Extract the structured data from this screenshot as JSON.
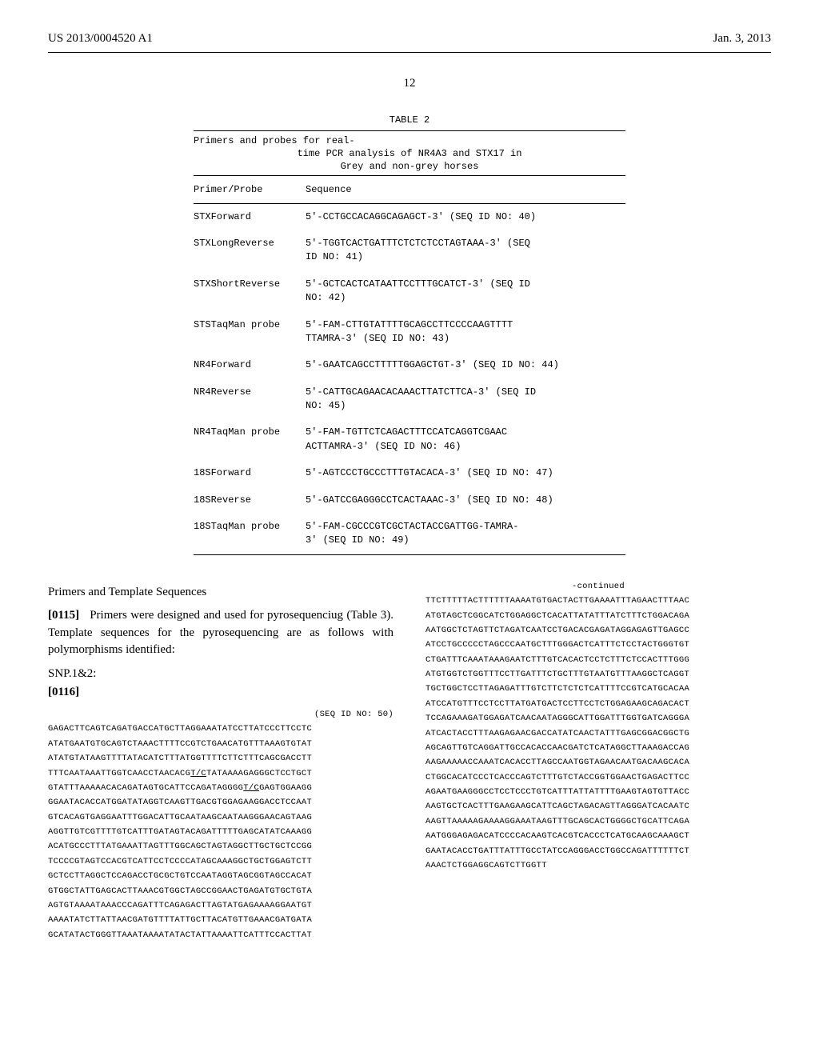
{
  "header": {
    "pubnum": "US 2013/0004520 A1",
    "pubdate": "Jan. 3, 2013"
  },
  "pagenum": "12",
  "table": {
    "number": "TABLE 2",
    "caption_line1": "Primers and probes for real-",
    "caption_line2": "time PCR analysis of NR4A3 and STX17 in",
    "caption_line3": "Grey and non-grey horses",
    "col1": "Primer/Probe",
    "col2": "Sequence",
    "rows": [
      {
        "c1": "STXForward",
        "c2": "5'-CCTGCCACAGGCAGAGCT-3' (SEQ ID NO: 40)"
      },
      {
        "c1": "STXLongReverse",
        "c2": "5'-TGGTCACTGATTTCTCTCTCCTAGTAAA-3' (SEQ\nID NO: 41)"
      },
      {
        "c1": "STXShortReverse",
        "c2": "5'-GCTCACTCATAATTCCTTTGCATCT-3' (SEQ ID\nNO: 42)"
      },
      {
        "c1": "STSTaqMan probe",
        "c2": "5'-FAM-CTTGTATTTTGCAGCCTTCCCCAAGTTTT\nTTAMRA-3' (SEQ ID NO: 43)"
      },
      {
        "c1": "NR4Forward",
        "c2": "5'-GAATCAGCCTTTTTGGAGCTGT-3' (SEQ ID NO: 44)"
      },
      {
        "c1": "NR4Reverse",
        "c2": "5'-CATTGCAGAACACAAACTTATCTTCA-3' (SEQ ID\nNO: 45)"
      },
      {
        "c1": "NR4TaqMan probe",
        "c2": "5'-FAM-TGTTCTCAGACTTTCCATCAGGTCGAAC\nACTTAMRA-3' (SEQ ID NO: 46)"
      },
      {
        "c1": "18SForward",
        "c2": "5'-AGTCCCTGCCCTTTGTACACA-3' (SEQ ID NO: 47)"
      },
      {
        "c1": "18SReverse",
        "c2": "5'-GATCCGAGGGCCTCACTAAAC-3' (SEQ ID NO: 48)"
      },
      {
        "c1": "18STaqMan probe",
        "c2": "5'-FAM-CGCCCGTCGCTACTACCGATTGG-TAMRA-\n3' (SEQ ID NO: 49)"
      }
    ]
  },
  "left_col": {
    "section_header": "Primers and Template Sequences",
    "para_num": "[0115]",
    "para_text": "Primers were designed and used for pyrosequenciug (Table 3). Template sequences for the pyrosequencing are as follows with polymorphisms identified:",
    "snp_label": "SNP.1&2:",
    "bold_para": "[0116]",
    "seq_id": "(SEQ ID NO: 50)",
    "seq_lines": [
      "GAGACTTCAGTCAGATGACCATGCTTAGGAAATATCCTTATCCCTTCCTC",
      "ATATGAATGTGCAGTCTAAACTTTTCCGTCTGAACATGTTTAAAGTGTAT",
      "ATATGTATAAGTTTTATACATCTTTATGGTTTTCTTCTTTCAGCGACCTT",
      "TTTCAATAAATTGGTCAACCTAACACGT/CTATAAAAGAGGGCTCCTGCT",
      "GTATTTAAAAACACAGATAGTGCATTCCAGATAGGGGT/CGAGTGGAAGG",
      "GGAATACACCATGGATATAGGTCAAGTTGACGTGGAGAAGGACCTCCAAT",
      "GTCACAGTGAGGAATTTGGACATTGCAATAAGCAATAAGGGAACAGTAAG",
      "AGGTTGTCGTTTTGTCATTTGATAGTACAGATTTTTGAGCATATCAAAGG",
      "ACATGCCCTTTATGAAATTAGTTTGGCAGCTAGTAGGCTTGCTGCTCCGG",
      "TCCCCGTAGTCCACGTCATTCCTCCCCATAGCAAAGGCTGCTGGAGTCTT",
      "GCTCCTTAGGCTCCAGACCTGCGCTGTCCAATAGGTAGCGGTAGCCACAT",
      "GTGGCTATTGAGCACTTAAACGTGGCTAGCCGGAACTGAGATGTGCTGTA",
      "AGTGTAAAATAAACCCAGATTTCAGAGACTTAGTATGAGAAAAGGAATGT",
      "AAAATATCTTATTAACGATGTTTTATTGCTTACATGTTGAAACGATGATA",
      "GCATATACTGGGTTAAATAAAATATACTATTAAAATTCATTTCCACTTAT"
    ]
  },
  "right_col": {
    "continued": "-continued",
    "seq_lines": [
      "TTCTTTTTACTTTTTTAAAATGTGACTACTTGAAAATTTAGAACTTTAAC",
      "ATGTAGCTCGGCATCTGGAGGCTCACATTATATTTATCTTTCTGGACAGA",
      "AATGGCTCTAGTTCTAGATCAATCCTGACACGAGATAGGAGAGTTGAGCC",
      "ATCCTGCCCCCTAGCCCAATGCTTTGGGACTCATTTCTCCTACTGGGTGT",
      "CTGATTTCAAATAAAGAATCTTTGTCACACTCCTCTTTCTCCACTTTGGG",
      "ATGTGGTCTGGTTTCCTTGATTTCTGCTTTGTAATGTTTAAGGCTCAGGT",
      "TGCTGGCTCCTTAGAGATTTGTCTTCTCTCTCATTTTCCGTCATGCACAA",
      "ATCCATGTTTCCTCCTTATGATGACTCCTTCCTCTGGAGAAGCAGACACT",
      "TCCAGAAAGATGGAGATCAACAATAGGGCATTGGATTTGGTGATCAGGGA",
      "ATCACTACCTTTAAGAGAACGACCATATCAACTATTTGAGCGGACGGCTG",
      "AGCAGTTGTCAGGATTGCCACACCAACGATCTCATAGGCTTAAAGACCAG",
      "AAGAAAAACCAAATCACACCTTAGCCAATGGTAGAACAATGACAAGCACA",
      "CTGGCACATCCCTCACCCAGTCTTTGTCTACCGGTGGAACTGAGACTTCC",
      "AGAATGAAGGGCCTCCTCCCTGTCATTTATTATTTTGAAGTAGTGTTACC",
      "AAGTGCTCACTTTGAAGAAGCATTCAGCTAGACAGTTAGGGATCACAATC",
      "AAGTTAAAAAGAAAAGGAAATAAGTTTGCAGCACTGGGGCTGCATTCAGA",
      "AATGGGAGAGACATCCCCACAAGTCACGTCACCCTCATGCAAGCAAAGCT",
      "GAATACACCTGATTTATTTGCCTATCCAGGGACCTGGCCAGATTTTTTCT",
      "AAACTCTGGAGGCAGTCTTGGTT"
    ]
  }
}
